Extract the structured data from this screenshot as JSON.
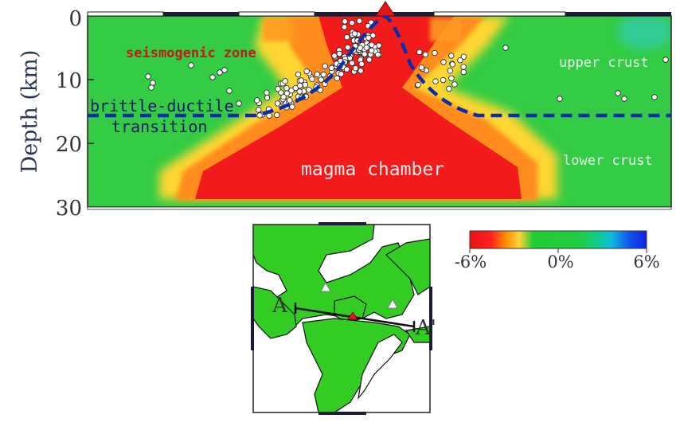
{
  "y_axis": {
    "label": "Depth (km)",
    "ticks": [
      "0",
      "10",
      "20",
      "30"
    ]
  },
  "annotations": {
    "seismogenic_zone": "seismogenic zone",
    "brittle_ductile_1": "brittle-ductile",
    "brittle_ductile_2": "transition",
    "upper_crust": "upper crust",
    "lower_crust": "lower crust",
    "magma_chamber": "magma chamber"
  },
  "colorbar": {
    "min_label": "-6%",
    "mid_label": "0%",
    "max_label": "6%",
    "colors": [
      "#ee1111",
      "#ff7700",
      "#ffcc33",
      "#22cc33",
      "#11cc66",
      "#11bbdd",
      "#1133ee"
    ]
  },
  "map": {
    "label_a": "A",
    "label_a_prime": "A'"
  },
  "colors": {
    "background_green": "#33cc44",
    "magma_red": "#f21a1a",
    "orange": "#ff8c1a",
    "yellow": "#ffd633",
    "dashed_line": "#0a2ea8",
    "volcano": "#e01818"
  }
}
